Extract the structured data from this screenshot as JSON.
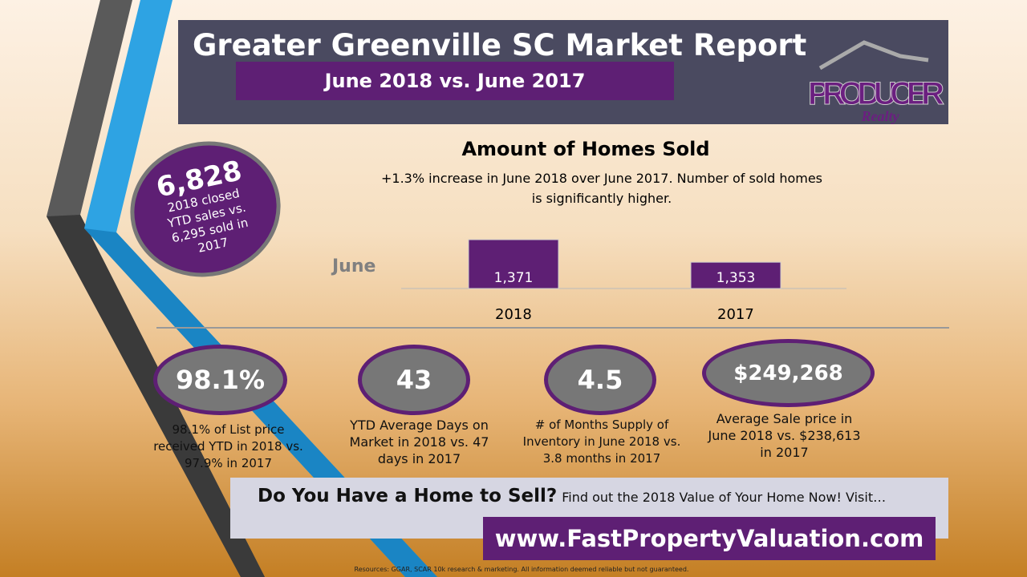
{
  "header": {
    "title": "Greater Greenville SC Market Report",
    "subtitle": "June 2018 vs. June 2017",
    "logo_text": "PRODUCER",
    "logo_subtext": "Realty"
  },
  "ytd": {
    "value": "6,828",
    "text": "2018 closed YTD sales vs. 6,295 sold in 2017"
  },
  "chart_data": {
    "type": "bar",
    "title": "Amount of Homes Sold",
    "subtitle": "+1.3% increase in June 2018 over June 2017. Number of sold homes is significantly higher.",
    "series_label": "June",
    "categories": [
      "2018",
      "2017"
    ],
    "values": [
      1371,
      1353
    ],
    "value_labels": [
      "1,371",
      "1,353"
    ],
    "bar_color": "#5e1f74",
    "ylim": [
      1332,
      1380
    ],
    "grid": false
  },
  "stats": [
    {
      "value": "98.1%",
      "text": "98.1% of List price received YTD in 2018 vs. 97.9% in 2017"
    },
    {
      "value": "43",
      "text": "YTD Average Days on Market in 2018 vs. 47 days in 2017"
    },
    {
      "value": "4.5",
      "text": "# of Months Supply of Inventory in June 2018 vs. 3.8 months in 2017"
    },
    {
      "value": "$249,268",
      "text": "Average Sale price in June 2018 vs. $238,613 in 2017"
    }
  ],
  "cta": {
    "heading": "Do You Have a Home to Sell?",
    "text": "Find out the 2018 Value of Your Home Now! Visit…",
    "url": "www.FastPropertyValuation.com"
  },
  "footer": "Resources: GGAR, SCAR 10k research & marketing. All information deemed reliable but not guaranteed.",
  "colors": {
    "purple": "#5e1f74",
    "header": "#4a4a60",
    "blue": "#2ea3e3",
    "grey": "#555"
  }
}
